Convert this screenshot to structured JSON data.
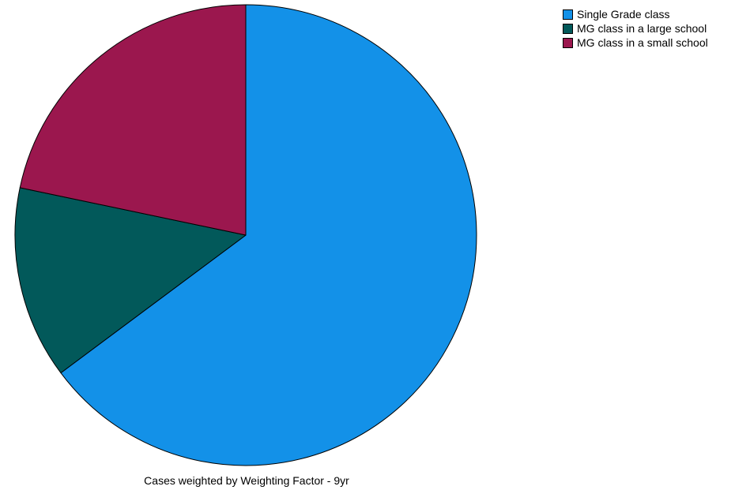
{
  "chart_data": {
    "type": "pie",
    "title": "",
    "slices": [
      {
        "label": "Single Grade class",
        "value": 64.8,
        "color": "#1391E8"
      },
      {
        "label": "MG class in a large school",
        "value": 13.5,
        "color": "#02595A"
      },
      {
        "label": "MG class in a small school",
        "value": 21.7,
        "color": "#9B174E"
      }
    ],
    "legend_position": "top-right",
    "start_angle_deg": 0,
    "direction": "clockwise",
    "footnote": "Cases weighted by Weighting Factor - 9yr"
  }
}
